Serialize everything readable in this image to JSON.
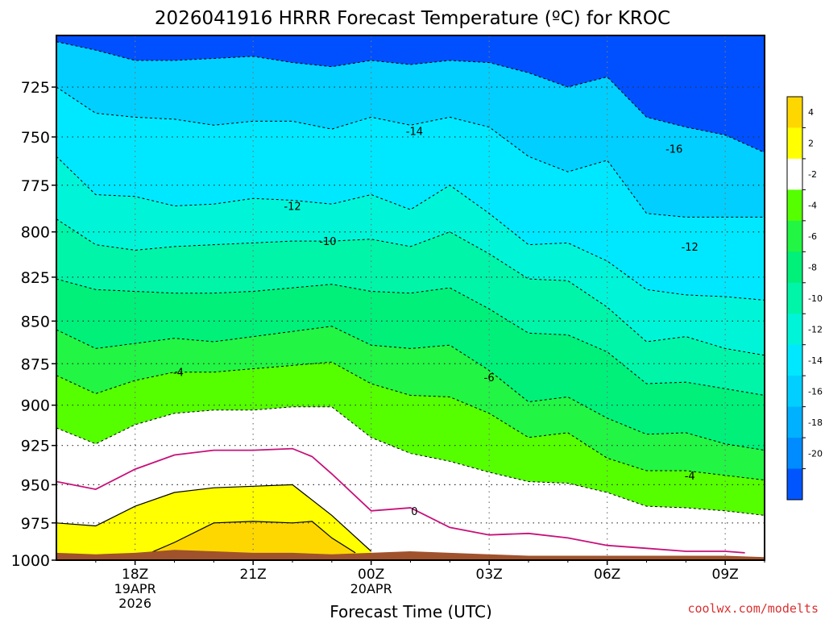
{
  "title": "2026041916 HRRR Forecast Temperature (ºC) for KROC",
  "watermark": "coolwx.com/modelts",
  "chart_data": {
    "type": "filled-contour",
    "title": "2026041916 HRRR Forecast Temperature (ºC) for KROC",
    "xlabel": "Forecast Time (UTC)",
    "ylabel": "",
    "x_range_hours_utc": [
      "2026-04-19 16Z",
      "2026-04-20 10Z"
    ],
    "y_range_hpa": [
      1000,
      700
    ],
    "y_scale": "log-pressure (inverted)",
    "grid": true,
    "x_ticks": [
      {
        "label": "18Z",
        "sublabels": [
          "19APR",
          "2026"
        ]
      },
      {
        "label": "21Z",
        "sublabels": []
      },
      {
        "label": "00Z",
        "sublabels": [
          "20APR"
        ]
      },
      {
        "label": "03Z",
        "sublabels": []
      },
      {
        "label": "06Z",
        "sublabels": []
      },
      {
        "label": "09Z",
        "sublabels": []
      }
    ],
    "y_ticks": [
      "725",
      "750",
      "775",
      "800",
      "825",
      "850",
      "875",
      "900",
      "925",
      "950",
      "975",
      "1000"
    ],
    "colorbar": {
      "placement": "right",
      "labels": [
        "4",
        "2",
        "-2",
        "-4",
        "-6",
        "-8",
        "-10",
        "-12",
        "-14",
        "-16",
        "-18",
        "-20"
      ],
      "bins": [
        {
          "from": 4,
          "to": 6,
          "color": "#ffd700"
        },
        {
          "from": 2,
          "to": 4,
          "color": "#ffff00"
        },
        {
          "from": -2,
          "to": 2,
          "color": "#ffffff"
        },
        {
          "from": -4,
          "to": -2,
          "color": "#55ff00"
        },
        {
          "from": -6,
          "to": -4,
          "color": "#22f544"
        },
        {
          "from": -8,
          "to": -6,
          "color": "#00f07a"
        },
        {
          "from": -10,
          "to": -8,
          "color": "#00f5a8"
        },
        {
          "from": -12,
          "to": -10,
          "color": "#00f5d8"
        },
        {
          "from": -14,
          "to": -12,
          "color": "#00e8ff"
        },
        {
          "from": -16,
          "to": -14,
          "color": "#00cfff"
        },
        {
          "from": -18,
          "to": -16,
          "color": "#00b1ff"
        },
        {
          "from": -20,
          "to": -18,
          "color": "#008cff"
        },
        {
          "from": -22,
          "to": -20,
          "color": "#0055ff"
        }
      ]
    },
    "contour_labels": [
      "-14",
      "-16",
      "-12",
      "-10",
      "-12",
      "-4",
      "-6",
      "-4",
      "0"
    ],
    "contours": [
      {
        "level": -16,
        "style": "dashed",
        "points": [
          [
            16,
            703
          ],
          [
            17,
            707
          ],
          [
            18,
            712
          ],
          [
            19,
            712
          ],
          [
            20,
            711
          ],
          [
            21,
            710
          ],
          [
            22,
            713
          ],
          [
            23,
            715
          ],
          [
            24,
            712
          ],
          [
            25,
            714
          ],
          [
            26,
            712
          ],
          [
            27,
            713
          ],
          [
            28,
            718
          ],
          [
            29,
            725
          ],
          [
            30,
            720
          ],
          [
            31,
            740
          ],
          [
            32,
            745
          ],
          [
            33,
            749
          ],
          [
            34,
            758
          ]
        ]
      },
      {
        "level": -14,
        "style": "dashed",
        "points": [
          [
            16,
            725
          ],
          [
            17,
            738
          ],
          [
            18,
            740
          ],
          [
            19,
            741
          ],
          [
            20,
            744
          ],
          [
            21,
            742
          ],
          [
            22,
            742
          ],
          [
            23,
            746
          ],
          [
            24,
            740
          ],
          [
            25,
            744
          ],
          [
            26,
            740
          ],
          [
            27,
            745
          ],
          [
            28,
            760
          ],
          [
            29,
            768
          ],
          [
            30,
            762
          ],
          [
            31,
            790
          ],
          [
            32,
            792
          ],
          [
            33,
            792
          ],
          [
            34,
            792
          ]
        ]
      },
      {
        "level": -12,
        "style": "dashed",
        "points": [
          [
            16,
            760
          ],
          [
            17,
            780
          ],
          [
            18,
            781
          ],
          [
            19,
            786
          ],
          [
            20,
            785
          ],
          [
            21,
            782
          ],
          [
            22,
            783
          ],
          [
            23,
            785
          ],
          [
            24,
            780
          ],
          [
            25,
            788
          ],
          [
            26,
            775
          ],
          [
            27,
            790
          ],
          [
            28,
            807
          ],
          [
            29,
            806
          ],
          [
            30,
            816
          ],
          [
            31,
            832
          ],
          [
            32,
            835
          ],
          [
            33,
            836
          ],
          [
            34,
            838
          ]
        ]
      },
      {
        "level": -10,
        "style": "dashed",
        "points": [
          [
            16,
            793
          ],
          [
            17,
            807
          ],
          [
            18,
            810
          ],
          [
            19,
            808
          ],
          [
            20,
            807
          ],
          [
            21,
            806
          ],
          [
            22,
            805
          ],
          [
            23,
            805
          ],
          [
            24,
            804
          ],
          [
            25,
            808
          ],
          [
            26,
            800
          ],
          [
            27,
            812
          ],
          [
            28,
            826
          ],
          [
            29,
            827
          ],
          [
            30,
            842
          ],
          [
            31,
            862
          ],
          [
            32,
            859
          ],
          [
            33,
            866
          ],
          [
            34,
            870
          ]
        ]
      },
      {
        "level": -8,
        "style": "dashed",
        "points": [
          [
            16,
            826
          ],
          [
            17,
            832
          ],
          [
            18,
            833
          ],
          [
            19,
            834
          ],
          [
            20,
            834
          ],
          [
            21,
            833
          ],
          [
            22,
            831
          ],
          [
            23,
            829
          ],
          [
            24,
            833
          ],
          [
            25,
            834
          ],
          [
            26,
            831
          ],
          [
            27,
            843
          ],
          [
            28,
            857
          ],
          [
            29,
            858
          ],
          [
            30,
            868
          ],
          [
            31,
            887
          ],
          [
            32,
            886
          ],
          [
            33,
            890
          ],
          [
            34,
            894
          ]
        ]
      },
      {
        "level": -6,
        "style": "dashed",
        "points": [
          [
            16,
            855
          ],
          [
            17,
            866
          ],
          [
            18,
            863
          ],
          [
            19,
            860
          ],
          [
            20,
            862
          ],
          [
            21,
            859
          ],
          [
            22,
            856
          ],
          [
            23,
            853
          ],
          [
            24,
            864
          ],
          [
            25,
            866
          ],
          [
            26,
            864
          ],
          [
            27,
            879
          ],
          [
            28,
            898
          ],
          [
            29,
            895
          ],
          [
            30,
            908
          ],
          [
            31,
            918
          ],
          [
            32,
            917
          ],
          [
            33,
            924
          ],
          [
            34,
            928
          ]
        ]
      },
      {
        "level": -4,
        "style": "dashed",
        "points": [
          [
            16,
            882
          ],
          [
            17,
            893
          ],
          [
            18,
            885
          ],
          [
            19,
            880
          ],
          [
            20,
            880
          ],
          [
            21,
            878
          ],
          [
            22,
            876
          ],
          [
            23,
            874
          ],
          [
            24,
            887
          ],
          [
            25,
            894
          ],
          [
            26,
            895
          ],
          [
            27,
            905
          ],
          [
            28,
            920
          ],
          [
            29,
            917
          ],
          [
            30,
            933
          ],
          [
            31,
            941
          ],
          [
            32,
            941
          ],
          [
            33,
            944
          ],
          [
            34,
            947
          ]
        ]
      },
      {
        "level": -2,
        "style": "dashed",
        "points": [
          [
            16,
            914
          ],
          [
            17,
            924
          ],
          [
            18,
            912
          ],
          [
            19,
            905
          ],
          [
            20,
            903
          ],
          [
            21,
            903
          ],
          [
            22,
            901
          ],
          [
            23,
            901
          ],
          [
            24,
            920
          ],
          [
            25,
            930
          ],
          [
            26,
            935
          ],
          [
            27,
            942
          ],
          [
            28,
            948
          ],
          [
            29,
            949
          ],
          [
            30,
            955
          ],
          [
            31,
            964
          ],
          [
            32,
            965
          ],
          [
            33,
            967
          ],
          [
            34,
            970
          ]
        ]
      },
      {
        "level": 0,
        "style": "solid-magenta",
        "points": [
          [
            16,
            948
          ],
          [
            17,
            953
          ],
          [
            18,
            940
          ],
          [
            19,
            931
          ],
          [
            20,
            928
          ],
          [
            21,
            928
          ],
          [
            22,
            927
          ],
          [
            22.5,
            932
          ],
          [
            23,
            943
          ],
          [
            24,
            967
          ],
          [
            25,
            965
          ],
          [
            26,
            978
          ],
          [
            27,
            983
          ],
          [
            28,
            982
          ],
          [
            29,
            985
          ],
          [
            30,
            990
          ],
          [
            31,
            992
          ],
          [
            32,
            994
          ],
          [
            33,
            994
          ],
          [
            33.5,
            995
          ]
        ]
      },
      {
        "level": 2,
        "style": "solid-black",
        "points": [
          [
            16,
            975
          ],
          [
            17,
            977
          ],
          [
            18,
            964
          ],
          [
            19,
            955
          ],
          [
            20,
            952
          ],
          [
            21,
            951
          ],
          [
            22,
            950
          ],
          [
            23,
            970
          ],
          [
            24,
            994
          ]
        ]
      },
      {
        "level": 4,
        "style": "solid-black",
        "points": [
          [
            18.3,
            996
          ],
          [
            19,
            988
          ],
          [
            20,
            975
          ],
          [
            21,
            974
          ],
          [
            22,
            975
          ],
          [
            22.5,
            974
          ],
          [
            23,
            985
          ],
          [
            23.6,
            995
          ]
        ]
      }
    ],
    "terrain": {
      "color": "#a0522d",
      "points": [
        [
          16,
          995
        ],
        [
          17,
          996
        ],
        [
          18,
          995
        ],
        [
          19,
          993
        ],
        [
          20,
          994
        ],
        [
          21,
          995
        ],
        [
          22,
          995
        ],
        [
          23,
          996
        ],
        [
          24,
          995
        ],
        [
          25,
          994
        ],
        [
          26,
          995
        ],
        [
          27,
          996
        ],
        [
          28,
          997
        ],
        [
          29,
          997
        ],
        [
          30,
          997
        ],
        [
          31,
          997
        ],
        [
          32,
          997
        ],
        [
          33,
          997
        ],
        [
          34,
          998
        ]
      ]
    }
  }
}
